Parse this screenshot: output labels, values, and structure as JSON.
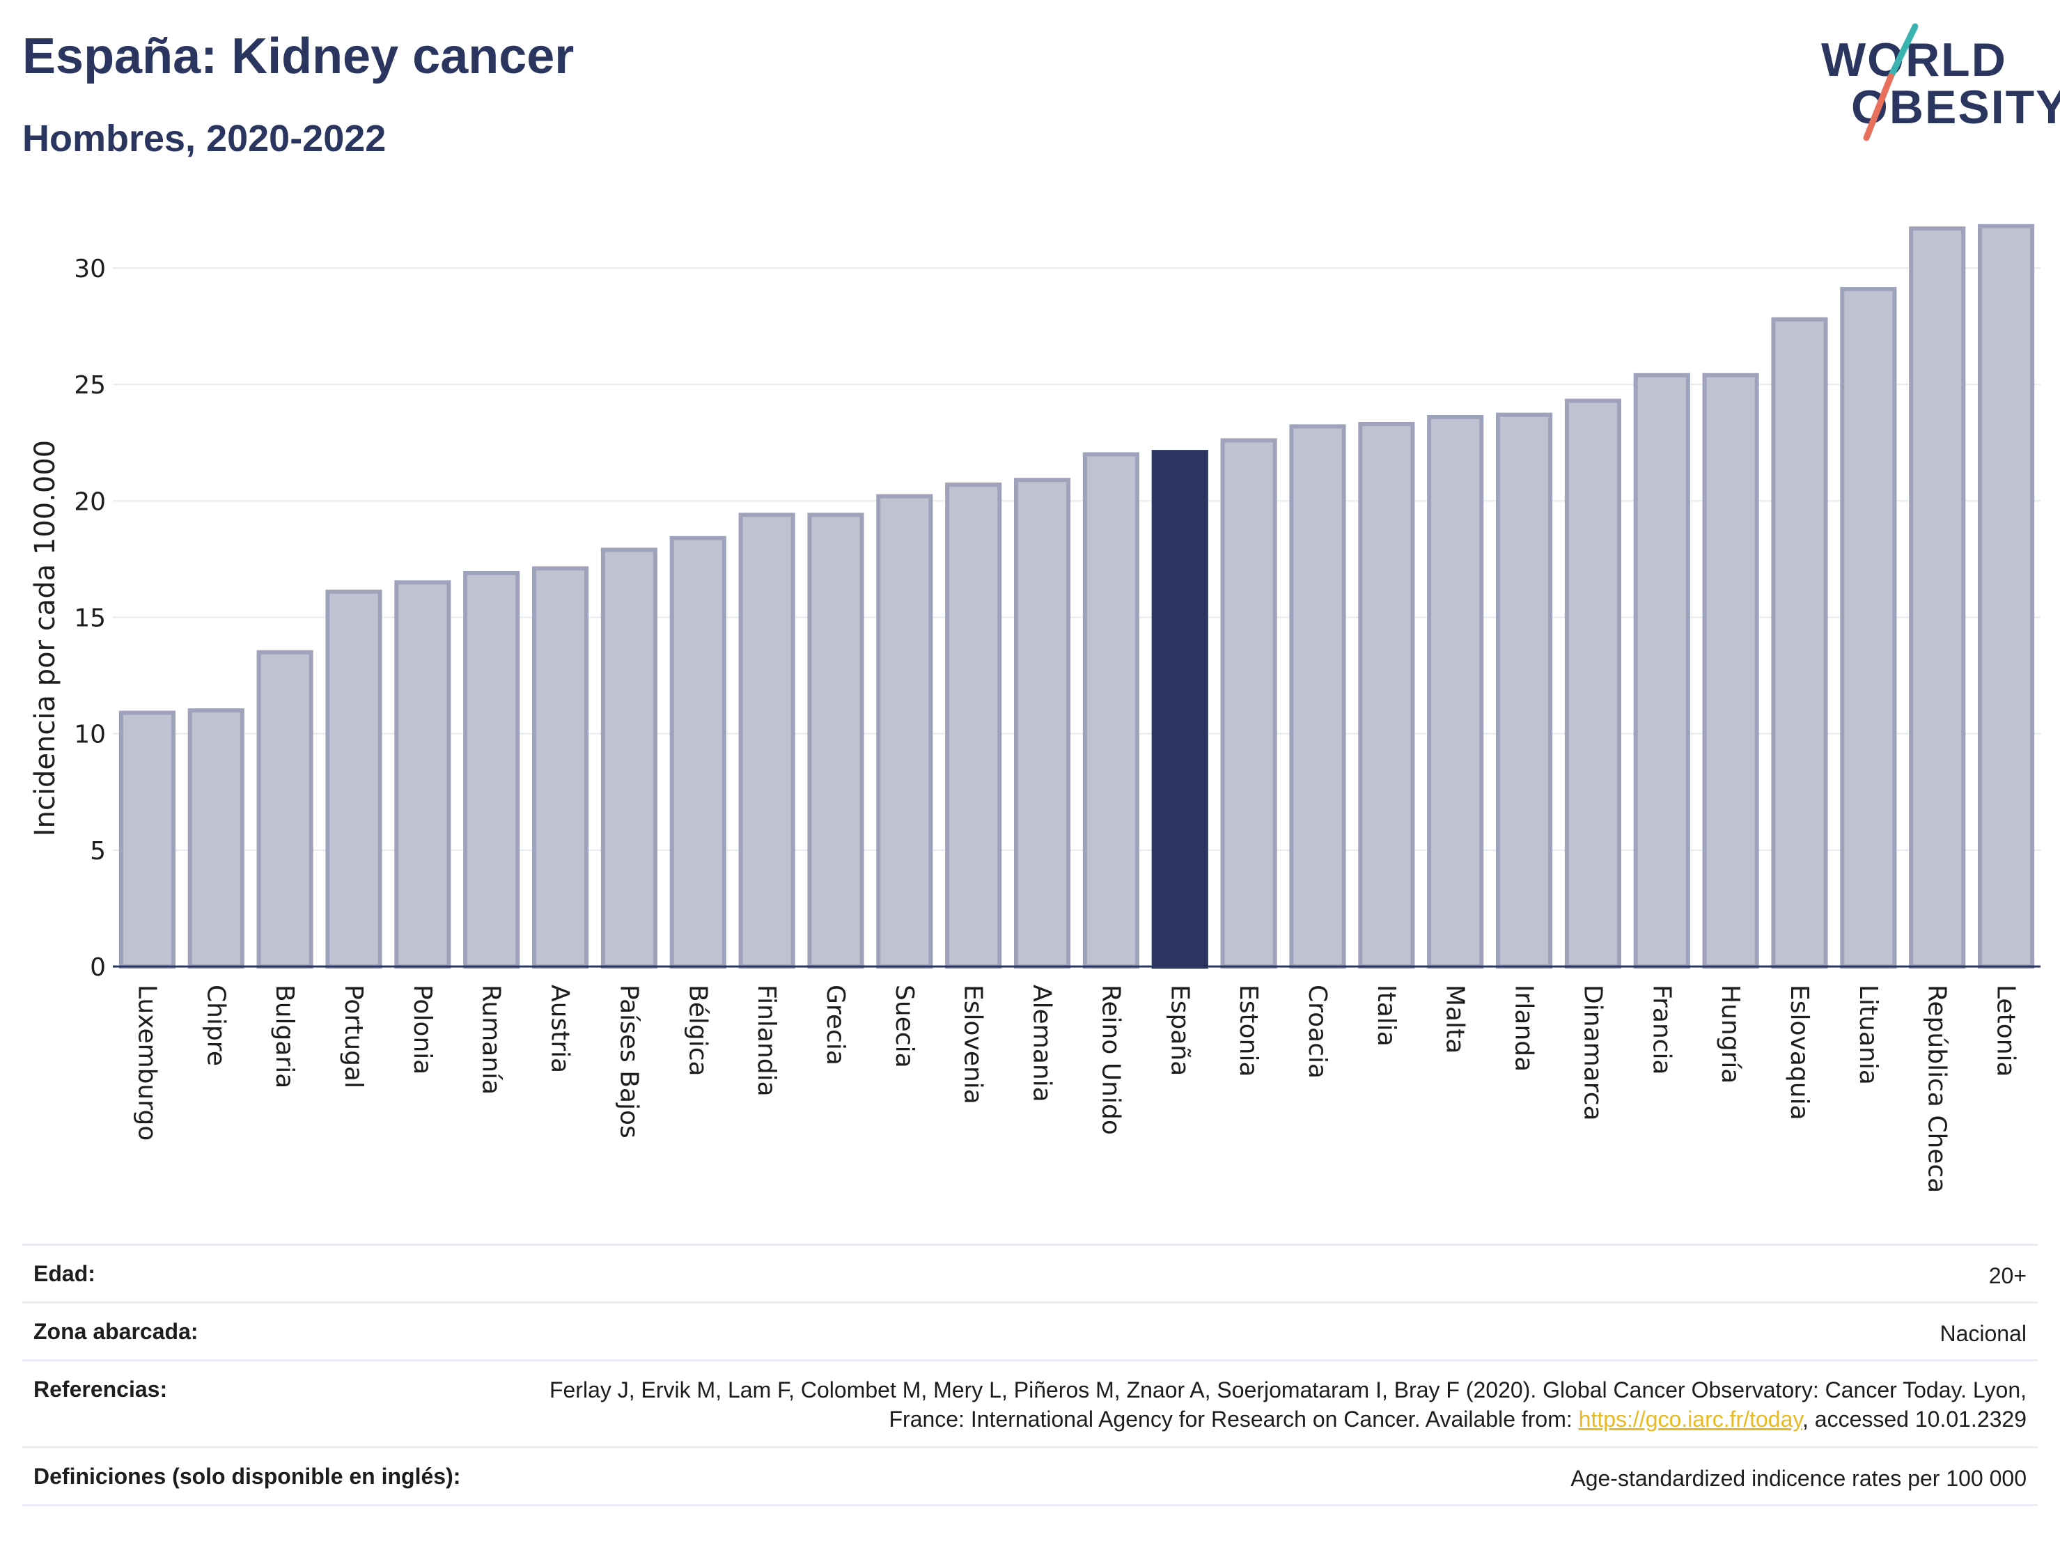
{
  "header": {
    "title": "España: Kidney cancer",
    "subtitle": "Hombres, 2020-2022"
  },
  "logo": {
    "line1": "WORLD",
    "line2": "OBESITY"
  },
  "colors": {
    "highlight": "#2a3560",
    "bar": "#bfc2d0",
    "bar_border": "#9ea3bb",
    "grid": "#e6e9ef"
  },
  "chart_data": {
    "type": "bar",
    "ylabel": "Incidencia por cada 100.000",
    "ylim": [
      0,
      32
    ],
    "yticks": [
      0,
      5,
      10,
      15,
      20,
      25,
      30
    ],
    "highlight": "España",
    "categories": [
      "Luxemburgo",
      "Chipre",
      "Bulgaria",
      "Portugal",
      "Polonia",
      "Rumanía",
      "Austria",
      "Países Bajos",
      "Bélgica",
      "Finlandia",
      "Grecia",
      "Suecia",
      "Eslovenia",
      "Alemania",
      "Reino Unido",
      "España",
      "Estonia",
      "Croacia",
      "Italia",
      "Malta",
      "Irlanda",
      "Dinamarca",
      "Francia",
      "Hungría",
      "Eslovaquia",
      "Lituania",
      "República Checa",
      "Letonia"
    ],
    "values": [
      10.9,
      11.0,
      13.5,
      16.1,
      16.5,
      16.9,
      17.1,
      17.9,
      18.4,
      19.4,
      19.4,
      20.2,
      20.7,
      20.9,
      22.0,
      22.1,
      22.6,
      23.2,
      23.3,
      23.6,
      23.7,
      24.3,
      25.4,
      25.4,
      27.8,
      29.1,
      31.7,
      31.8
    ]
  },
  "info": {
    "age_label": "Edad:",
    "age_value": "20+",
    "area_label": "Zona abarcada:",
    "area_value": "Nacional",
    "refs_label": "Referencias:",
    "refs_value_part1": "Ferlay J, Ervik M, Lam F, Colombet M, Mery L, Piñeros M, Znaor A, Soerjomataram I, Bray F (2020). Global Cancer Observatory: Cancer Today. Lyon, France: International Agency for Research on Cancer. Available from: ",
    "refs_link": "https://gco.iarc.fr/today",
    "refs_value_part2": ", accessed 10.01.2329",
    "defs_label": "Definiciones (solo disponible en inglés):",
    "defs_value": "Age-standardized indicence rates per 100 000"
  }
}
